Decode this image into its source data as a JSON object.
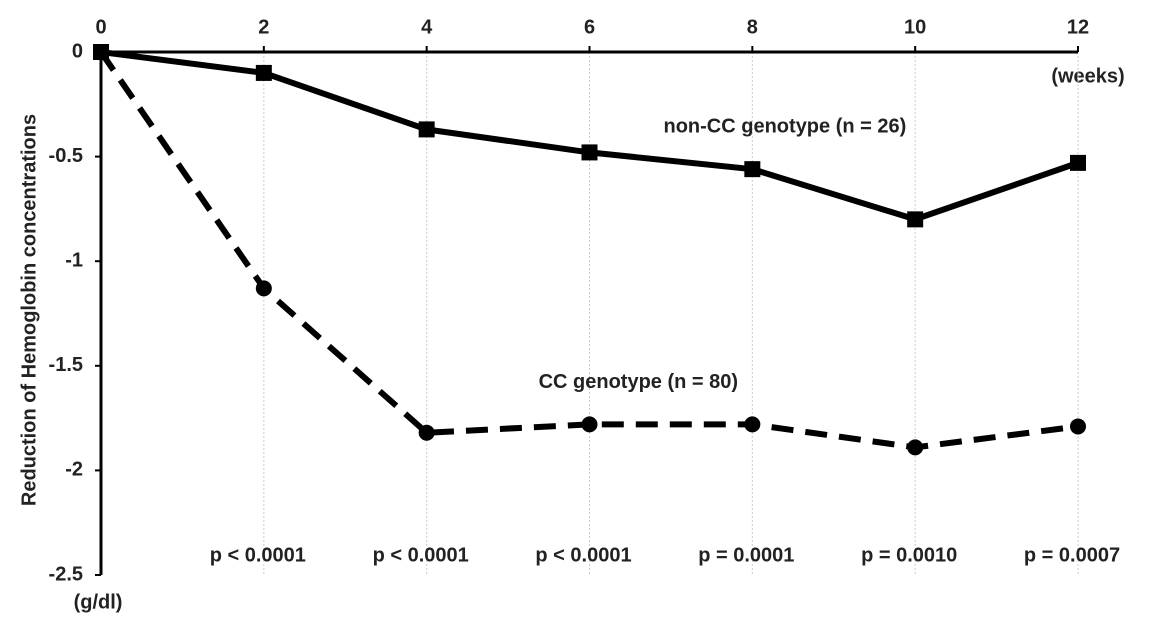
{
  "chart_data": {
    "type": "line",
    "y_label": "Reduction of Hemoglobin concentrations",
    "x_unit": "(weeks)",
    "y_unit": "(g/dl)",
    "x": [
      0,
      2,
      4,
      6,
      8,
      10,
      12
    ],
    "series": [
      {
        "name": "non-CC genotype (n = 26)",
        "color": "#000000",
        "dashed": false,
        "marker": "square",
        "values": [
          0,
          -0.1,
          -0.37,
          -0.48,
          -0.56,
          -0.8,
          -0.53
        ]
      },
      {
        "name": "CC genotype (n = 80)",
        "color": "#000000",
        "dashed": true,
        "marker": "circle",
        "values": [
          0,
          -1.13,
          -1.82,
          -1.78,
          -1.78,
          -1.89,
          -1.79
        ]
      }
    ],
    "p_values": [
      "p < 0.0001",
      "p < 0.0001",
      "p < 0.0001",
      "p = 0.0001",
      "p = 0.0010",
      "p = 0.0007"
    ],
    "xlim": [
      0,
      12
    ],
    "xticks": [
      0,
      2,
      4,
      6,
      8,
      10,
      12
    ],
    "ylim": [
      -2.5,
      0
    ],
    "yticks": [
      0,
      -0.5,
      -1,
      -1.5,
      -2,
      -2.5
    ],
    "grid": true
  }
}
